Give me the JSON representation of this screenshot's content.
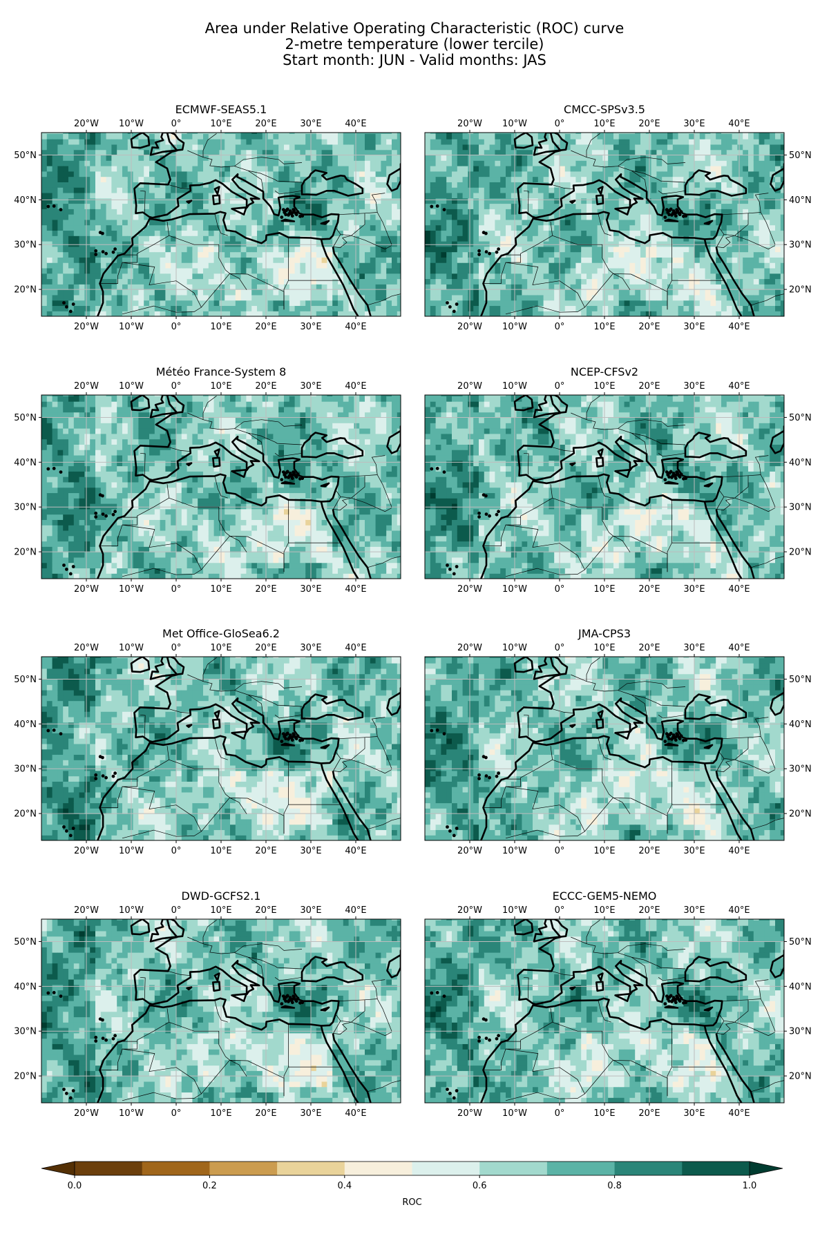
{
  "title_lines": [
    "Area under Relative Operating Characteristic (ROC) curve",
    "2-metre temperature (lower tercile)",
    "Start month: JUN - Valid months: JAS"
  ],
  "panels": [
    {
      "name": "ECMWF-SEAS5.1",
      "seed": 11
    },
    {
      "name": "CMCC-SPSv3.5",
      "seed": 23
    },
    {
      "name": "Météo France-System 8",
      "seed": 37
    },
    {
      "name": "NCEP-CFSv2",
      "seed": 41
    },
    {
      "name": "Met Office-GloSea6.2",
      "seed": 53
    },
    {
      "name": "JMA-CPS3",
      "seed": 67
    },
    {
      "name": "DWD-GCFS2.1",
      "seed": 71
    },
    {
      "name": "ECCC-GEM5-NEMO",
      "seed": 89
    }
  ],
  "map_extent": {
    "lon": [
      -30,
      50
    ],
    "lat": [
      14,
      55
    ]
  },
  "lon_ticks": [
    {
      "v": -20,
      "label": "20°W"
    },
    {
      "v": -10,
      "label": "10°W"
    },
    {
      "v": 0,
      "label": "0°"
    },
    {
      "v": 10,
      "label": "10°E"
    },
    {
      "v": 20,
      "label": "20°E"
    },
    {
      "v": 30,
      "label": "30°E"
    },
    {
      "v": 40,
      "label": "40°E"
    }
  ],
  "lat_ticks": [
    {
      "v": 50,
      "label": "50°N"
    },
    {
      "v": 40,
      "label": "40°N"
    },
    {
      "v": 30,
      "label": "30°N"
    },
    {
      "v": 20,
      "label": "20°N"
    }
  ],
  "colorbar": {
    "label": "ROC",
    "levels": [
      0.0,
      0.1,
      0.2,
      0.3,
      0.4,
      0.5,
      0.6,
      0.7,
      0.8,
      0.9,
      1.0
    ],
    "colors": [
      "#6b3f0c",
      "#a0661b",
      "#cb9c4f",
      "#e9d39a",
      "#f7efdc",
      "#dcf0ec",
      "#a2d9cd",
      "#5bb3a6",
      "#2a8578",
      "#0c5a4c"
    ],
    "under_color": "#543005",
    "over_color": "#003c30",
    "tick_labels": [
      "0.0",
      "0.2",
      "0.4",
      "0.6",
      "0.8",
      "1.0"
    ]
  },
  "colors": {
    "coastline": "#000000",
    "border": "#000000",
    "grid": "#bdbdbd"
  }
}
